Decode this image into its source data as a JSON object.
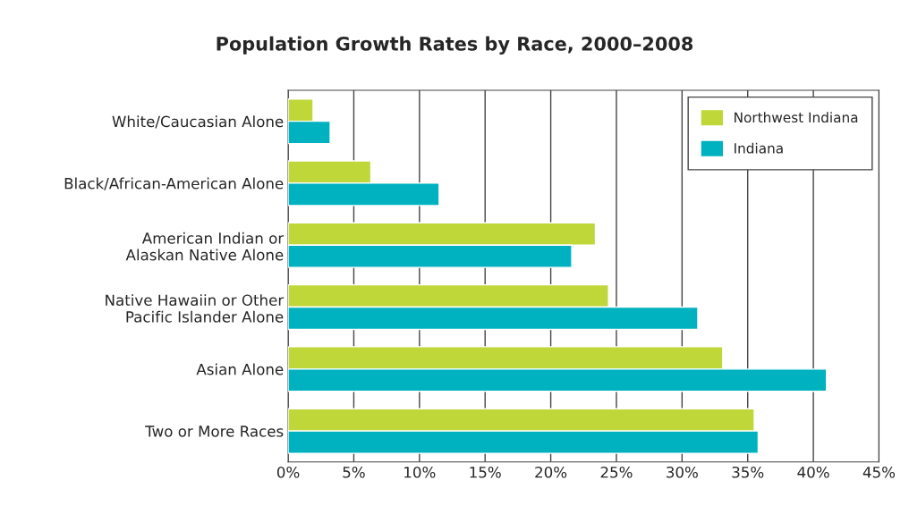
{
  "chart_data": {
    "type": "bar",
    "orientation": "horizontal",
    "title": "Population Growth Rates by Race, 2000–2008",
    "categories": [
      "White/Caucasian Alone",
      "Black/African-American Alone",
      "American Indian or\nAlaskan Native Alone",
      "Native Hawaiin or Other\nPacific Islander Alone",
      "Asian Alone",
      "Two or More Races"
    ],
    "series": [
      {
        "name": "Northwest Indiana",
        "color": "#c0d73a",
        "values": [
          1.9,
          6.3,
          23.4,
          24.4,
          33.1,
          35.5
        ]
      },
      {
        "name": "Indiana",
        "color": "#00b2bf",
        "values": [
          3.2,
          11.5,
          21.6,
          31.2,
          41.0,
          35.8
        ]
      }
    ],
    "xlim": [
      0,
      45
    ],
    "xticks": [
      {
        "value": 0,
        "label": "0%"
      },
      {
        "value": 5,
        "label": "5%"
      },
      {
        "value": 10,
        "label": "10%"
      },
      {
        "value": 15,
        "label": "15%"
      },
      {
        "value": 20,
        "label": "20%"
      },
      {
        "value": 25,
        "label": "25%"
      },
      {
        "value": 30,
        "label": "30%"
      },
      {
        "value": 35,
        "label": "35%"
      },
      {
        "value": 40,
        "label": "40%"
      },
      {
        "value": 45,
        "label": "45%"
      }
    ],
    "grid": "x",
    "legend": "top right"
  }
}
